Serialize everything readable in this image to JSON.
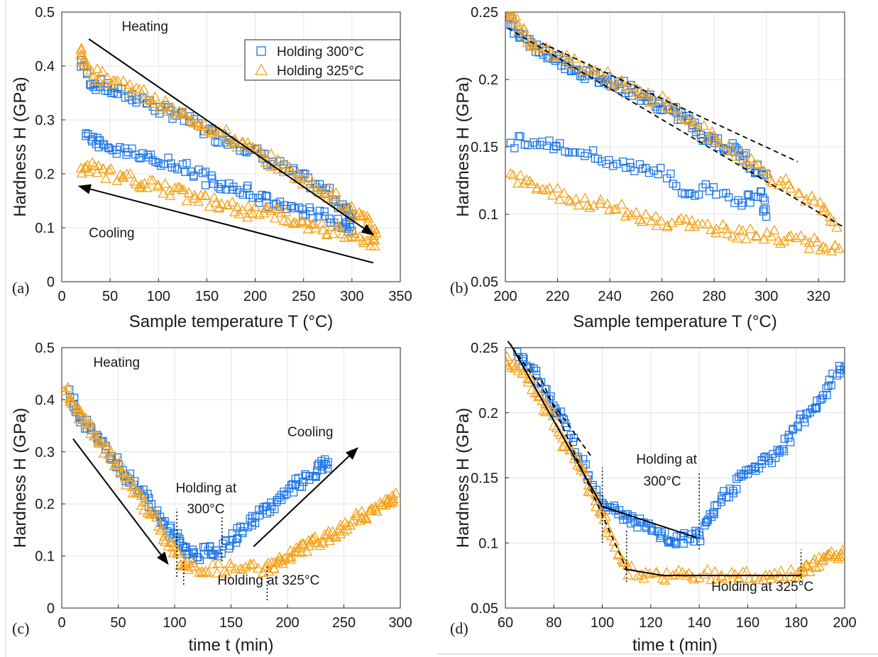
{
  "colors": {
    "holding_300": "#1f77e8",
    "holding_325": "#f5a31a",
    "fit_lines": "#000000"
  },
  "chart_data": [
    {
      "panel": "(a)",
      "type": "scatter",
      "xlabel": "Sample temperature T (°C)",
      "ylabel": "Hardness H (GPa)",
      "xlim": [
        0,
        350
      ],
      "ylim": [
        0,
        0.5
      ],
      "xticks": [
        0,
        50,
        100,
        150,
        200,
        250,
        300,
        350
      ],
      "yticks": [
        0,
        0.1,
        0.2,
        0.3,
        0.4,
        0.5
      ],
      "grid": true,
      "legend": {
        "placement": "top-right",
        "entries": [
          "Holding 300°C",
          "Holding 325°C"
        ]
      },
      "series": [
        {
          "name": "Holding 300°C",
          "marker": "square",
          "segments": [
            {
              "x": [
                20,
                30,
                45,
                60,
                80,
                100,
                120,
                140,
                160,
                180,
                200,
                220,
                240,
                260,
                280,
                295,
                300
              ],
              "y": [
                0.41,
                0.37,
                0.36,
                0.35,
                0.34,
                0.32,
                0.31,
                0.29,
                0.27,
                0.26,
                0.24,
                0.22,
                0.2,
                0.18,
                0.16,
                0.13,
                0.12
              ]
            },
            {
              "x": [
                300,
                290,
                270,
                250,
                230,
                210,
                190,
                170,
                150,
                130,
                110,
                90,
                70,
                50,
                35,
                25
              ],
              "y": [
                0.1,
                0.11,
                0.12,
                0.13,
                0.14,
                0.15,
                0.17,
                0.18,
                0.19,
                0.21,
                0.22,
                0.23,
                0.24,
                0.25,
                0.26,
                0.27
              ]
            }
          ]
        },
        {
          "name": "Holding 325°C",
          "marker": "triangle",
          "segments": [
            {
              "x": [
                20,
                25,
                40,
                60,
                80,
                100,
                120,
                140,
                160,
                180,
                200,
                220,
                240,
                260,
                280,
                300,
                315,
                325
              ],
              "y": [
                0.43,
                0.4,
                0.38,
                0.37,
                0.35,
                0.33,
                0.31,
                0.3,
                0.28,
                0.26,
                0.24,
                0.22,
                0.2,
                0.18,
                0.16,
                0.13,
                0.11,
                0.09
              ]
            },
            {
              "x": [
                325,
                310,
                290,
                270,
                250,
                230,
                210,
                190,
                170,
                150,
                130,
                110,
                90,
                70,
                50,
                30,
                20
              ],
              "y": [
                0.07,
                0.08,
                0.09,
                0.1,
                0.11,
                0.12,
                0.13,
                0.13,
                0.14,
                0.15,
                0.16,
                0.17,
                0.18,
                0.19,
                0.2,
                0.21,
                0.21
              ]
            }
          ]
        }
      ],
      "annotations": [
        {
          "text": "Heating",
          "x": 62,
          "y": 0.465
        },
        {
          "text": "Cooling",
          "x": 28,
          "y": 0.082
        }
      ],
      "lines": [
        {
          "kind": "arrow",
          "x": [
            28,
            322
          ],
          "y": [
            0.45,
            0.087
          ]
        },
        {
          "kind": "arrow",
          "x": [
            322,
            18
          ],
          "y": [
            0.035,
            0.177
          ]
        }
      ]
    },
    {
      "panel": "(b)",
      "type": "scatter",
      "xlabel": "Sample temperature T (°C)",
      "ylabel": "Hardness H (GPa)",
      "xlim": [
        200,
        330
      ],
      "ylim": [
        0.05,
        0.25
      ],
      "xticks": [
        200,
        220,
        240,
        260,
        280,
        300,
        320
      ],
      "yticks": [
        0.05,
        0.1,
        0.15,
        0.2,
        0.25
      ],
      "grid": true,
      "series": [
        {
          "name": "Holding 300°C",
          "marker": "square",
          "segments": [
            {
              "x": [
                201,
                205,
                210,
                215,
                220,
                225,
                230,
                235,
                240,
                245,
                250,
                255,
                260,
                265,
                270,
                275,
                280,
                285,
                290,
                295,
                300
              ],
              "y": [
                0.245,
                0.235,
                0.225,
                0.22,
                0.215,
                0.21,
                0.205,
                0.2,
                0.2,
                0.195,
                0.19,
                0.185,
                0.18,
                0.175,
                0.17,
                0.16,
                0.155,
                0.15,
                0.145,
                0.135,
                0.13
              ]
            },
            {
              "x": [
                300,
                298,
                290,
                280,
                270,
                260,
                250,
                240,
                230,
                220,
                212,
                202
              ],
              "y": [
                0.1,
                0.115,
                0.11,
                0.12,
                0.115,
                0.13,
                0.135,
                0.14,
                0.145,
                0.15,
                0.155,
                0.153
              ]
            }
          ]
        },
        {
          "name": "Holding 325°C",
          "marker": "triangle",
          "segments": [
            {
              "x": [
                201,
                205,
                210,
                220,
                230,
                240,
                250,
                260,
                270,
                280,
                290,
                300,
                310,
                320,
                327
              ],
              "y": [
                0.25,
                0.24,
                0.228,
                0.22,
                0.21,
                0.2,
                0.19,
                0.185,
                0.17,
                0.155,
                0.145,
                0.13,
                0.12,
                0.105,
                0.09
              ]
            },
            {
              "x": [
                328,
                320,
                310,
                300,
                290,
                280,
                270,
                260,
                250,
                240,
                230,
                220,
                210,
                202
              ],
              "y": [
                0.072,
                0.078,
                0.08,
                0.085,
                0.085,
                0.09,
                0.092,
                0.095,
                0.1,
                0.105,
                0.11,
                0.115,
                0.12,
                0.13
              ]
            }
          ]
        }
      ],
      "lines": [
        {
          "kind": "dashed",
          "x": [
            201,
            330
          ],
          "y": [
            0.238,
            0.09
          ]
        },
        {
          "kind": "dashed",
          "x": [
            214,
            312
          ],
          "y": [
            0.227,
            0.139
          ]
        }
      ]
    },
    {
      "panel": "(c)",
      "type": "scatter",
      "xlabel": "time t (min)",
      "ylabel": "Hardness H (GPa)",
      "xlim": [
        0,
        300
      ],
      "ylim": [
        0,
        0.5
      ],
      "xticks": [
        0,
        50,
        100,
        150,
        200,
        250,
        300
      ],
      "yticks": [
        0,
        0.1,
        0.2,
        0.3,
        0.4,
        0.5
      ],
      "grid": true,
      "series": [
        {
          "name": "Holding 300°C",
          "marker": "square",
          "segments": [
            {
              "x": [
                8,
                15,
                25,
                35,
                45,
                55,
                65,
                75,
                85,
                95,
                103,
                110,
                120,
                130,
                140,
                150,
                160,
                170,
                180,
                190,
                200,
                210,
                220,
                230,
                236
              ],
              "y": [
                0.41,
                0.37,
                0.35,
                0.32,
                0.29,
                0.26,
                0.24,
                0.21,
                0.18,
                0.15,
                0.13,
                0.11,
                0.1,
                0.11,
                0.11,
                0.13,
                0.15,
                0.17,
                0.19,
                0.2,
                0.22,
                0.24,
                0.25,
                0.27,
                0.28
              ]
            }
          ]
        },
        {
          "name": "Holding 325°C",
          "marker": "triangle",
          "segments": [
            {
              "x": [
                3,
                10,
                20,
                30,
                40,
                50,
                60,
                70,
                80,
                90,
                100,
                108,
                120,
                140,
                160,
                180,
                190,
                200,
                210,
                220,
                230,
                240,
                250,
                260,
                270,
                280,
                290,
                296
              ],
              "y": [
                0.42,
                0.39,
                0.36,
                0.33,
                0.3,
                0.27,
                0.24,
                0.21,
                0.18,
                0.14,
                0.11,
                0.08,
                0.075,
                0.075,
                0.075,
                0.075,
                0.085,
                0.095,
                0.11,
                0.12,
                0.13,
                0.14,
                0.155,
                0.17,
                0.18,
                0.19,
                0.205,
                0.22
              ]
            }
          ]
        }
      ],
      "annotations": [
        {
          "text": "Heating",
          "x": 28,
          "y": 0.463
        },
        {
          "text": "Cooling",
          "x": 200,
          "y": 0.33
        },
        {
          "text": "Holding at",
          "x": 101,
          "y": 0.222
        },
        {
          "text": "300°C",
          "x": 111,
          "y": 0.182
        },
        {
          "text": "Holding at 325°C",
          "x": 138,
          "y": 0.045
        }
      ],
      "lines": [
        {
          "kind": "arrow",
          "x": [
            10,
            94
          ],
          "y": [
            0.325,
            0.085
          ]
        },
        {
          "kind": "arrow",
          "x": [
            170,
            262
          ],
          "y": [
            0.118,
            0.307
          ]
        },
        {
          "kind": "dotted",
          "x": [
            102,
            102
          ],
          "y": [
            0.06,
            0.19
          ]
        },
        {
          "kind": "dotted",
          "x": [
            108,
            108
          ],
          "y": [
            0.045,
            0.09
          ]
        },
        {
          "kind": "dotted",
          "x": [
            142,
            142
          ],
          "y": [
            0.09,
            0.175
          ]
        },
        {
          "kind": "dotted",
          "x": [
            182,
            182
          ],
          "y": [
            0.015,
            0.08
          ]
        }
      ]
    },
    {
      "panel": "(d)",
      "type": "scatter",
      "xlabel": "time t (min)",
      "ylabel": "Hardness H (GPa)",
      "xlim": [
        60,
        200
      ],
      "ylim": [
        0.05,
        0.25
      ],
      "xticks": [
        60,
        80,
        100,
        120,
        140,
        160,
        180,
        200
      ],
      "yticks": [
        0.05,
        0.1,
        0.15,
        0.2,
        0.25
      ],
      "grid": true,
      "series": [
        {
          "name": "Holding 300°C",
          "marker": "square",
          "segments": [
            {
              "x": [
                65,
                70,
                75,
                80,
                85,
                90,
                95,
                100,
                105,
                110,
                115,
                120,
                125,
                130,
                135,
                140,
                145,
                150,
                155,
                160,
                165,
                170,
                175,
                180,
                185,
                190,
                195,
                200
              ],
              "y": [
                0.245,
                0.235,
                0.22,
                0.205,
                0.19,
                0.17,
                0.15,
                0.13,
                0.125,
                0.12,
                0.115,
                0.11,
                0.105,
                0.1,
                0.105,
                0.105,
                0.12,
                0.135,
                0.145,
                0.155,
                0.16,
                0.165,
                0.175,
                0.19,
                0.2,
                0.21,
                0.225,
                0.235
              ]
            }
          ]
        },
        {
          "name": "Holding 325°C",
          "marker": "triangle",
          "segments": [
            {
              "x": [
                60,
                65,
                70,
                75,
                80,
                85,
                90,
                95,
                100,
                105,
                110,
                120,
                130,
                140,
                150,
                160,
                170,
                180,
                185,
                190,
                195,
                200
              ],
              "y": [
                0.24,
                0.235,
                0.225,
                0.21,
                0.195,
                0.175,
                0.16,
                0.14,
                0.12,
                0.1,
                0.08,
                0.075,
                0.075,
                0.075,
                0.075,
                0.075,
                0.075,
                0.075,
                0.08,
                0.085,
                0.09,
                0.093
              ]
            }
          ]
        }
      ],
      "annotations": [
        {
          "text": "Holding at",
          "x": 114,
          "y": 0.161
        },
        {
          "text": "300°C",
          "x": 117,
          "y": 0.144
        },
        {
          "text": "Holding at 325°C",
          "x": 145,
          "y": 0.063
        }
      ],
      "lines": [
        {
          "kind": "solid",
          "x": [
            62,
            100,
            139
          ],
          "y": [
            0.253,
            0.128,
            0.104
          ]
        },
        {
          "kind": "solid",
          "x": [
            109,
            125,
            182
          ],
          "y": [
            0.08,
            0.075,
            0.075
          ]
        },
        {
          "kind": "dashed",
          "x": [
            61,
            96
          ],
          "y": [
            0.255,
            0.165
          ]
        },
        {
          "kind": "dashed",
          "x": [
            75,
            110
          ],
          "y": [
            0.225,
            0.08
          ]
        },
        {
          "kind": "dotted",
          "x": [
            100,
            100
          ],
          "y": [
            0.1,
            0.158
          ]
        },
        {
          "kind": "dotted",
          "x": [
            110,
            110
          ],
          "y": [
            0.07,
            0.11
          ]
        },
        {
          "kind": "dotted",
          "x": [
            140,
            140
          ],
          "y": [
            0.095,
            0.155
          ]
        },
        {
          "kind": "dotted",
          "x": [
            182,
            182
          ],
          "y": [
            0.07,
            0.095
          ]
        }
      ]
    }
  ]
}
